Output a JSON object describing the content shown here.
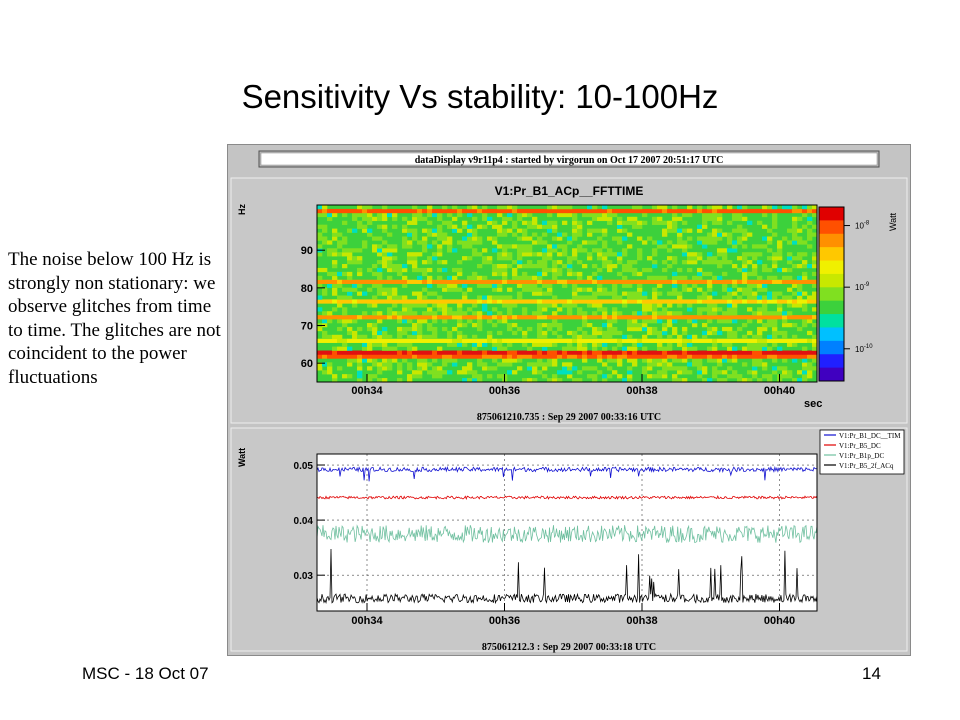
{
  "slide": {
    "title": "Sensitivity Vs stability: 10-100Hz",
    "side_text": "The noise below 100 Hz is strongly non stationary: we observe glitches from time to time. The glitches are not coincident to the power fluctuations",
    "footer_left": "MSC - 18 Oct 07",
    "footer_right": "14"
  },
  "panel_header": "dataDisplay v9r11p4 : started by virgorun on Oct 17 2007 20:51:17 UTC",
  "colors": {
    "panel_bg": "#c4c4c4",
    "series_blue": "#1010d0",
    "series_red": "#e00000",
    "series_teal": "#70c0a0",
    "series_black": "#000000"
  },
  "chart_data": [
    {
      "type": "heatmap",
      "title": "V1:Pr_B1_ACp__FFTTIME",
      "ylabel": "Hz",
      "xlabel": "sec",
      "x_ticks": [
        "00h34",
        "00h36",
        "00h38",
        "00h40"
      ],
      "y_ticks": [
        60,
        70,
        80,
        90
      ],
      "ylim": [
        55,
        102
      ],
      "colorbar": {
        "label": "Watt",
        "ticks": [
          "10^-8",
          "10^-9",
          "10^-10"
        ],
        "scale": "log",
        "range": [
          3e-11,
          2e-08
        ]
      },
      "bands_hz": [
        {
          "freq": 62,
          "level": "orange-red"
        },
        {
          "freq": 63,
          "level": "red"
        },
        {
          "freq": 66,
          "level": "yellow"
        },
        {
          "freq": 72,
          "level": "orange"
        },
        {
          "freq": 76,
          "level": "yellow-orange"
        },
        {
          "freq": 82,
          "level": "orange"
        },
        {
          "freq": 100,
          "level": "red-orange"
        }
      ],
      "footer": "875061210.735 : Sep 29 2007 00:33:16 UTC"
    },
    {
      "type": "line",
      "ylabel": "Watt",
      "x_ticks": [
        "00h34",
        "00h36",
        "00h38",
        "00h40"
      ],
      "y_ticks": [
        0.03,
        0.04,
        0.05
      ],
      "ylim": [
        0.0235,
        0.052
      ],
      "grid": true,
      "legend_position": "top-right",
      "series": [
        {
          "name": "V1:Pr_B1_DC__TIM",
          "color": "#1010d0",
          "baseline": 0.0492,
          "noise": 0.0004,
          "dips": [
            0.0475,
            0.047
          ]
        },
        {
          "name": "V1:Pr_B5_DC",
          "color": "#e00000",
          "baseline": 0.0441,
          "noise": 0.00025
        },
        {
          "name": "V1:Pr_B1p_DC",
          "color": "#70c0a0",
          "baseline": 0.0375,
          "noise": 0.0016
        },
        {
          "name": "V1:Pr_B5_2f_ACq",
          "color": "#000000",
          "baseline": 0.0258,
          "noise": 0.0008,
          "spikes": [
            0.033,
            0.032
          ]
        }
      ],
      "footer": "875061212.3 : Sep 29 2007 00:33:18 UTC"
    }
  ]
}
